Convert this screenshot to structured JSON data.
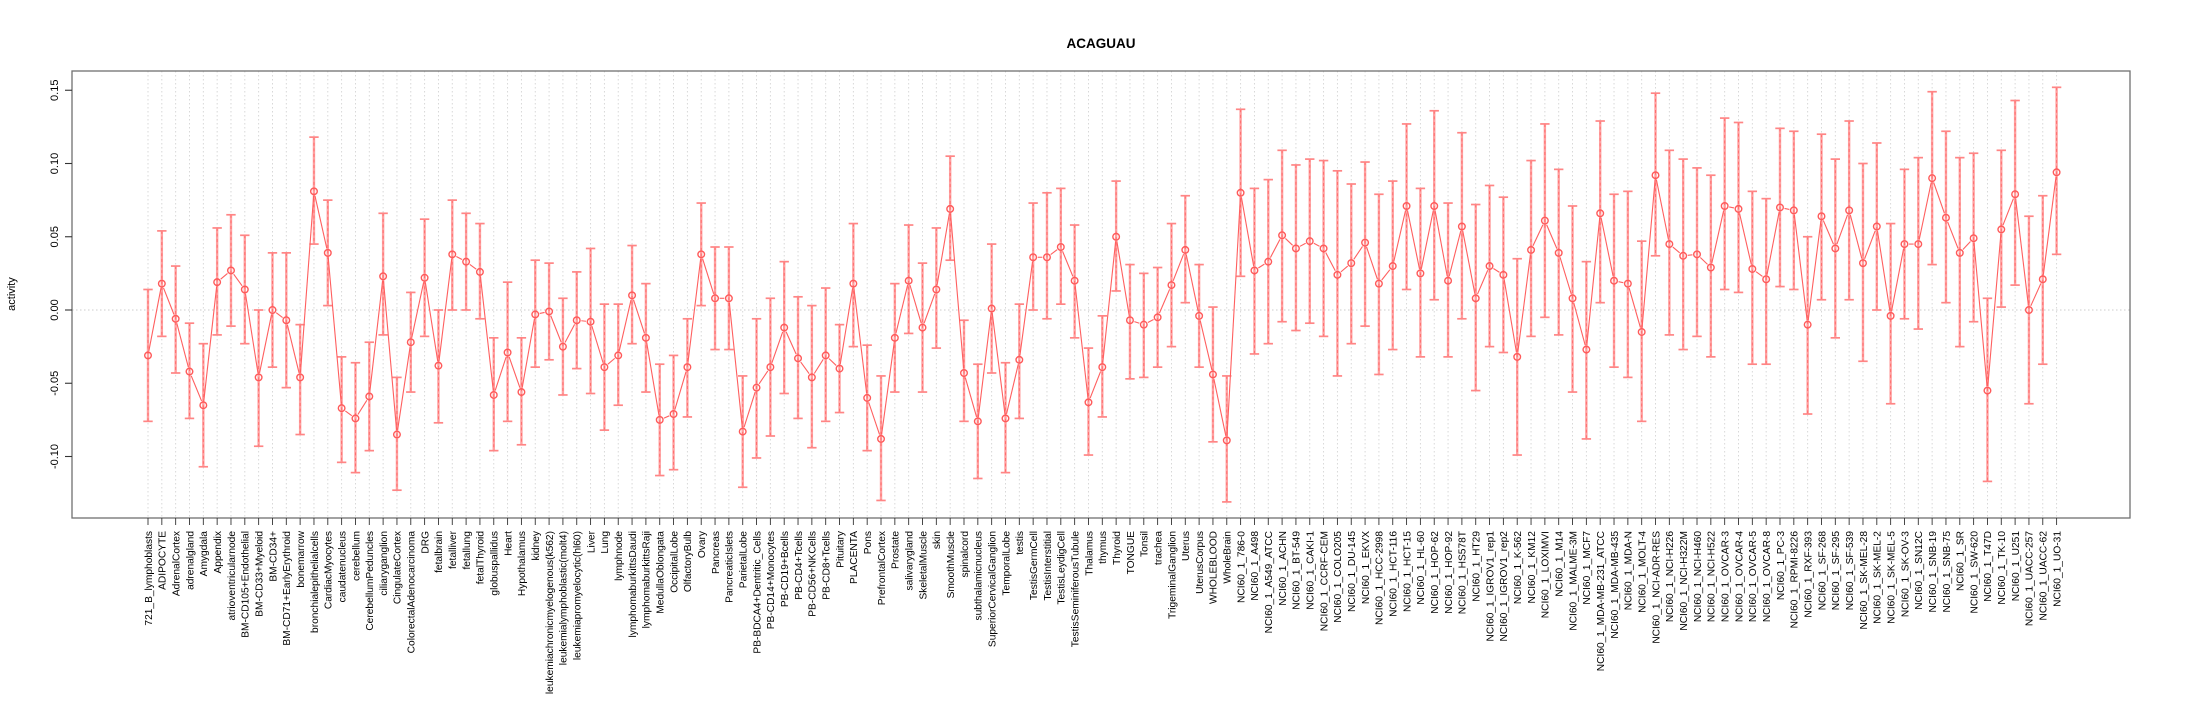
{
  "figure": {
    "title": "ACAGUAU",
    "ylabel": "activity"
  },
  "chart_data": {
    "type": "line",
    "variant": "points-with-error-bars",
    "title": "ACAGUAU",
    "xlabel": "",
    "ylabel": "activity",
    "ylim": [
      -0.142,
      0.163
    ],
    "yticks": [
      -0.1,
      -0.05,
      0.0,
      0.05,
      0.1,
      0.15
    ],
    "ytick_labels": [
      "-0.10",
      "-0.05",
      "0.00",
      "0.05",
      "0.10",
      "0.15"
    ],
    "grid": "vertical dotted gridline per category, dotted horizontal line at 0",
    "legend": "none",
    "colors": {
      "point": "#ff5a5a",
      "line": "#ff5f5f",
      "error_bar": "#ffa0a0",
      "error_bar_core": "#ff6a6a",
      "error_cap": "#ff8585",
      "grid": "#d4d4d4",
      "zero_line": "#cccccc",
      "box": "#707070",
      "tick": "#333333",
      "text": "#000000"
    },
    "categories": [
      "721_B_lymphoblasts",
      "ADIPOCYTE",
      "AdrenalCortex",
      "adrenalgland",
      "Amygdala",
      "Appendix",
      "atrioventricularnode",
      "BM-CD105+Endothelial",
      "BM-CD33+Myeloid",
      "BM-CD34+",
      "BM-CD71+EarlyErythroid",
      "bonemarrow",
      "bronchialepithelialcells",
      "CardiacMyocytes",
      "caudatenucleus",
      "cerebellum",
      "CerebellumPeduncles",
      "ciliaryganglion",
      "CingulateCortex",
      "ColorectalAdenocarcinoma",
      "DRG",
      "fetalbrain",
      "fetalliver",
      "fetallung",
      "fetalThyroid",
      "globuspallidus",
      "Heart",
      "Hypothalamus",
      "kidney",
      "leukemiachronicmyelogenous(k562)",
      "leukemialymphoblastic(molt4)",
      "leukemiapromyelocytic(hl60)",
      "Liver",
      "Lung",
      "lymphnode",
      "lymphomaburkittsDaudi",
      "lymphomaburkittsRaji",
      "MedullaOblongata",
      "OccipitalLobe",
      "OlfactoryBulb",
      "Ovary",
      "Pancreas",
      "PancreaticIslets",
      "ParietalLobe",
      "PB-BDCA4+Dentritic_Cells",
      "PB-CD14+Monocytes",
      "PB-CD19+Bcells",
      "PB-CD4+Tcells",
      "PB-CD56+NKCells",
      "PB-CD8+Tcells",
      "Pituitary",
      "PLACENTA",
      "Pons",
      "PrefrontalCortex",
      "Prostate",
      "salivarygland",
      "SkeletalMuscle",
      "skin",
      "SmoothMuscle",
      "spinalcord",
      "subthalamicnucleus",
      "SuperiorCervicalGanglion",
      "TemporalLobe",
      "testis",
      "TestisGermCell",
      "TestisInterstitial",
      "TestisLeydigCell",
      "TestisSeminiferousTubule",
      "Thalamus",
      "thymus",
      "Thyroid",
      "TONGUE",
      "Tonsil",
      "trachea",
      "TrigeminalGanglion",
      "Uterus",
      "UterusCorpus",
      "WHOLEBLOOD",
      "WholeBrain",
      "NCI60_1_786-0",
      "NCI60_1_A498",
      "NCI60_1_A549_ATCC",
      "NCI60_1_ACHN",
      "NCI60_1_BT-549",
      "NCI60_1_CAKI-1",
      "NCI60_1_CCRF-CEM",
      "NCI60_1_COLO205",
      "NCI60_1_DU-145",
      "NCI60_1_EKVX",
      "NCI60_1_HCC-2998",
      "NCI60_1_HCT-116",
      "NCI60_1_HCT-15",
      "NCI60_1_HL-60",
      "NCI60_1_HOP-62",
      "NCI60_1_HOP-92",
      "NCI60_1_HS578T",
      "NCI60_1_HT29",
      "NCI60_1_IGROV1_rep1",
      "NCI60_1_IGROV1_rep2",
      "NCI60_1_K-562",
      "NCI60_1_KM12",
      "NCI60_1_LOXIMVI",
      "NCI60_1_M14",
      "NCI60_1_MALME-3M",
      "NCI60_1_MCF7",
      "NCI60_1_MDA-MB-231_ATCC",
      "NCI60_1_MDA-MB-435",
      "NCI60_1_MDA-N",
      "NCI60_1_MOLT-4",
      "NCI60_1_NCI-ADR-RES",
      "NCI60_1_NCI-H226",
      "NCI60_1_NCI-H322M",
      "NCI60_1_NCI-H460",
      "NCI60_1_NCI-H522",
      "NCI60_1_OVCAR-3",
      "NCI60_1_OVCAR-4",
      "NCI60_1_OVCAR-5",
      "NCI60_1_OVCAR-8",
      "NCI60_1_PC-3",
      "NCI60_1_RPMI-8226",
      "NCI60_1_RXF-393",
      "NCI60_1_SF-268",
      "NCI60_1_SF-295",
      "NCI60_1_SF-539",
      "NCI60_1_SK-MEL-28",
      "NCI60_1_SK-MEL-2",
      "NCI60_1_SK-MEL-5",
      "NCI60_1_SK-OV-3",
      "NCI60_1_SN12C",
      "NCI60_1_SNB-19",
      "NCI60_1_SNB-75",
      "NCI60_1_SR",
      "NCI60_1_SW-620",
      "NCI60_1_T47D",
      "NCI60_1_TK-10",
      "NCI60_1_U251",
      "NCI60_1_UACC-257",
      "NCI60_1_UACC-62",
      "NCI60_1_UO-31"
    ],
    "series": [
      {
        "name": "activity",
        "values": [
          -0.031,
          0.018,
          -0.006,
          -0.042,
          -0.065,
          0.019,
          0.027,
          0.014,
          -0.046,
          0.0,
          -0.007,
          -0.046,
          0.081,
          0.039,
          -0.067,
          -0.074,
          -0.059,
          0.023,
          -0.085,
          -0.022,
          0.022,
          -0.038,
          0.038,
          0.033,
          0.026,
          -0.058,
          -0.029,
          -0.056,
          -0.003,
          -0.001,
          -0.025,
          -0.007,
          -0.008,
          -0.039,
          -0.031,
          0.01,
          -0.019,
          -0.075,
          -0.071,
          -0.039,
          0.038,
          0.008,
          0.008,
          -0.083,
          -0.053,
          -0.039,
          -0.012,
          -0.033,
          -0.046,
          -0.031,
          -0.04,
          0.018,
          -0.06,
          -0.088,
          -0.019,
          0.02,
          -0.012,
          0.014,
          0.069,
          -0.043,
          -0.076,
          0.001,
          -0.074,
          -0.034,
          0.036,
          0.036,
          0.043,
          0.02,
          -0.063,
          -0.039,
          0.05,
          -0.007,
          -0.01,
          -0.005,
          0.017,
          0.041,
          -0.004,
          -0.044,
          -0.089,
          0.08,
          0.027,
          0.033,
          0.051,
          0.042,
          0.047,
          0.042,
          0.024,
          0.032,
          0.046,
          0.018,
          0.03,
          0.071,
          0.025,
          0.071,
          0.02,
          0.057,
          0.008,
          0.03,
          0.024,
          -0.032,
          0.041,
          0.061,
          0.039,
          0.008,
          -0.027,
          0.066,
          0.02,
          0.018,
          -0.015,
          0.092,
          0.045,
          0.037,
          0.038,
          0.029,
          0.071,
          0.069,
          0.028,
          0.021,
          0.07,
          0.068,
          -0.01,
          0.064,
          0.042,
          0.068,
          0.032,
          0.057,
          -0.004,
          0.045,
          0.045,
          0.09,
          0.063,
          0.039,
          0.049,
          -0.055,
          0.055,
          0.079,
          0.0,
          0.021,
          0.094
        ],
        "upper": [
          0.014,
          0.054,
          0.03,
          -0.009,
          -0.023,
          0.056,
          0.065,
          0.051,
          0.0,
          0.039,
          0.039,
          -0.01,
          0.118,
          0.075,
          -0.032,
          -0.036,
          -0.022,
          0.066,
          -0.046,
          0.012,
          0.062,
          0.0,
          0.075,
          0.066,
          0.059,
          -0.019,
          0.019,
          -0.019,
          0.034,
          0.032,
          0.008,
          0.026,
          0.042,
          0.004,
          0.004,
          0.044,
          0.018,
          -0.037,
          -0.031,
          -0.006,
          0.073,
          0.043,
          0.043,
          -0.045,
          -0.006,
          0.008,
          0.033,
          0.009,
          0.003,
          0.015,
          -0.01,
          0.059,
          -0.024,
          -0.045,
          0.018,
          0.058,
          0.032,
          0.056,
          0.105,
          -0.007,
          -0.037,
          0.045,
          -0.036,
          0.004,
          0.073,
          0.08,
          0.083,
          0.058,
          -0.026,
          -0.004,
          0.088,
          0.031,
          0.025,
          0.029,
          0.059,
          0.078,
          0.031,
          0.002,
          -0.045,
          0.137,
          0.083,
          0.089,
          0.109,
          0.099,
          0.103,
          0.102,
          0.095,
          0.086,
          0.101,
          0.079,
          0.088,
          0.127,
          0.083,
          0.136,
          0.073,
          0.121,
          0.072,
          0.085,
          0.077,
          0.035,
          0.102,
          0.127,
          0.096,
          0.071,
          0.033,
          0.129,
          0.079,
          0.081,
          0.047,
          0.148,
          0.109,
          0.103,
          0.097,
          0.092,
          0.131,
          0.128,
          0.081,
          0.076,
          0.124,
          0.122,
          0.05,
          0.12,
          0.103,
          0.129,
          0.1,
          0.114,
          0.059,
          0.096,
          0.104,
          0.149,
          0.122,
          0.104,
          0.107,
          0.008,
          0.109,
          0.143,
          0.064,
          0.078,
          0.152
        ],
        "lower": [
          -0.076,
          -0.018,
          -0.043,
          -0.074,
          -0.107,
          -0.017,
          -0.011,
          -0.023,
          -0.093,
          -0.039,
          -0.053,
          -0.085,
          0.045,
          0.003,
          -0.104,
          -0.111,
          -0.096,
          -0.017,
          -0.123,
          -0.056,
          -0.018,
          -0.077,
          0.0,
          0.0,
          -0.006,
          -0.096,
          -0.076,
          -0.092,
          -0.039,
          -0.034,
          -0.058,
          -0.04,
          -0.057,
          -0.082,
          -0.065,
          -0.023,
          -0.056,
          -0.113,
          -0.109,
          -0.073,
          0.003,
          -0.027,
          -0.027,
          -0.121,
          -0.101,
          -0.086,
          -0.057,
          -0.074,
          -0.094,
          -0.076,
          -0.07,
          -0.025,
          -0.096,
          -0.13,
          -0.056,
          -0.016,
          -0.056,
          -0.026,
          0.034,
          -0.076,
          -0.115,
          -0.043,
          -0.111,
          -0.074,
          0.0,
          -0.006,
          0.004,
          -0.019,
          -0.099,
          -0.073,
          0.013,
          -0.047,
          -0.046,
          -0.039,
          -0.025,
          0.005,
          -0.039,
          -0.09,
          -0.131,
          0.023,
          -0.03,
          -0.023,
          -0.008,
          -0.014,
          -0.009,
          -0.018,
          -0.045,
          -0.023,
          -0.011,
          -0.044,
          -0.027,
          0.014,
          -0.032,
          0.007,
          -0.032,
          -0.006,
          -0.055,
          -0.025,
          -0.029,
          -0.099,
          -0.018,
          -0.005,
          -0.017,
          -0.056,
          -0.088,
          0.005,
          -0.039,
          -0.046,
          -0.076,
          0.037,
          -0.017,
          -0.027,
          -0.018,
          -0.032,
          0.014,
          0.012,
          -0.037,
          -0.037,
          0.016,
          0.014,
          -0.071,
          0.007,
          -0.019,
          0.007,
          -0.035,
          0.0,
          -0.064,
          -0.006,
          -0.013,
          0.031,
          0.005,
          -0.025,
          -0.008,
          -0.117,
          0.002,
          0.017,
          -0.064,
          -0.037,
          0.038
        ]
      }
    ]
  }
}
